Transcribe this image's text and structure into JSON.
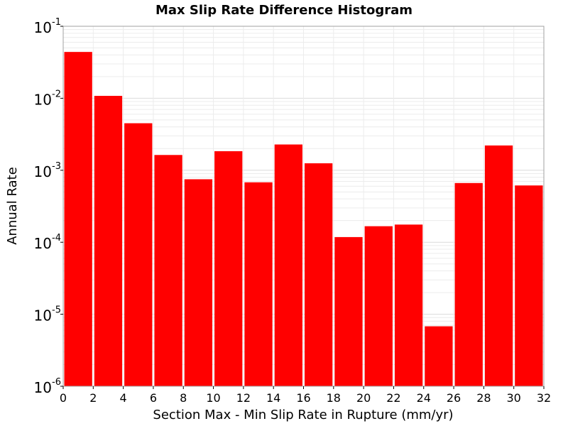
{
  "chart_data": {
    "type": "bar",
    "title": "Max Slip Rate Difference Histogram",
    "xlabel": "Section Max - Min Slip Rate in Rupture (mm/yr)",
    "ylabel": "Annual Rate",
    "xlim": [
      0,
      32
    ],
    "ylim": [
      1e-06,
      0.1
    ],
    "y_scale": "log",
    "x_ticks": [
      "0",
      "2",
      "4",
      "6",
      "8",
      "10",
      "12",
      "14",
      "16",
      "18",
      "20",
      "22",
      "24",
      "26",
      "28",
      "30",
      "32"
    ],
    "y_ticks": [
      {
        "base": "10",
        "exp": "-6"
      },
      {
        "base": "10",
        "exp": "-5"
      },
      {
        "base": "10",
        "exp": "-4"
      },
      {
        "base": "10",
        "exp": "-3"
      },
      {
        "base": "10",
        "exp": "-2"
      },
      {
        "base": "10",
        "exp": "-1"
      }
    ],
    "grid": true,
    "bar_color": "#ff0000",
    "bin_width": 2,
    "bins": [
      {
        "x0": 0,
        "value": 0.044
      },
      {
        "x0": 2,
        "value": 0.0108
      },
      {
        "x0": 4,
        "value": 0.0045
      },
      {
        "x0": 6,
        "value": 0.00163
      },
      {
        "x0": 8,
        "value": 0.00075
      },
      {
        "x0": 10,
        "value": 0.00184
      },
      {
        "x0": 12,
        "value": 0.00068
      },
      {
        "x0": 14,
        "value": 0.00228
      },
      {
        "x0": 16,
        "value": 0.00125
      },
      {
        "x0": 18,
        "value": 0.000118
      },
      {
        "x0": 20,
        "value": 0.000167
      },
      {
        "x0": 22,
        "value": 0.000176
      },
      {
        "x0": 24,
        "value": 6.8e-06
      },
      {
        "x0": 26,
        "value": 0.000665
      },
      {
        "x0": 28,
        "value": 0.00221
      },
      {
        "x0": 30,
        "value": 0.000615
      }
    ]
  }
}
